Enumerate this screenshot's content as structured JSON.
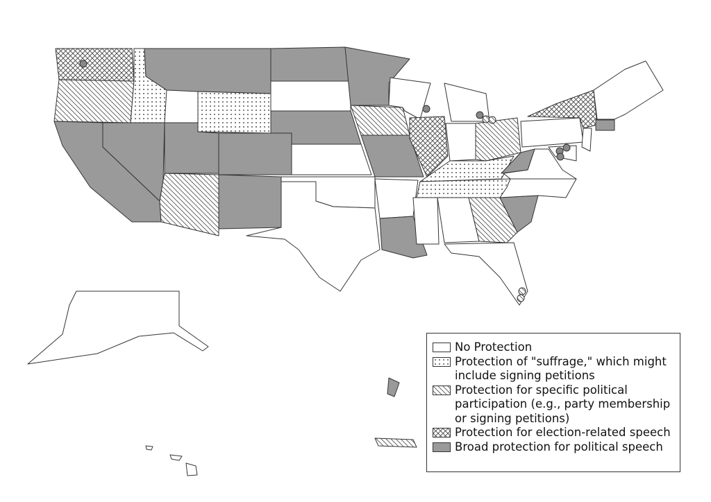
{
  "legend": {
    "items": [
      {
        "label": "No Protection"
      },
      {
        "label": "Protection of \"suffrage,\" which might include signing petitions"
      },
      {
        "label": "Protection for specific political participation (e.g., party membership or signing petitions)"
      },
      {
        "label": "Protection for election-related speech"
      },
      {
        "label": "Broad protection for political speech"
      }
    ]
  }
}
